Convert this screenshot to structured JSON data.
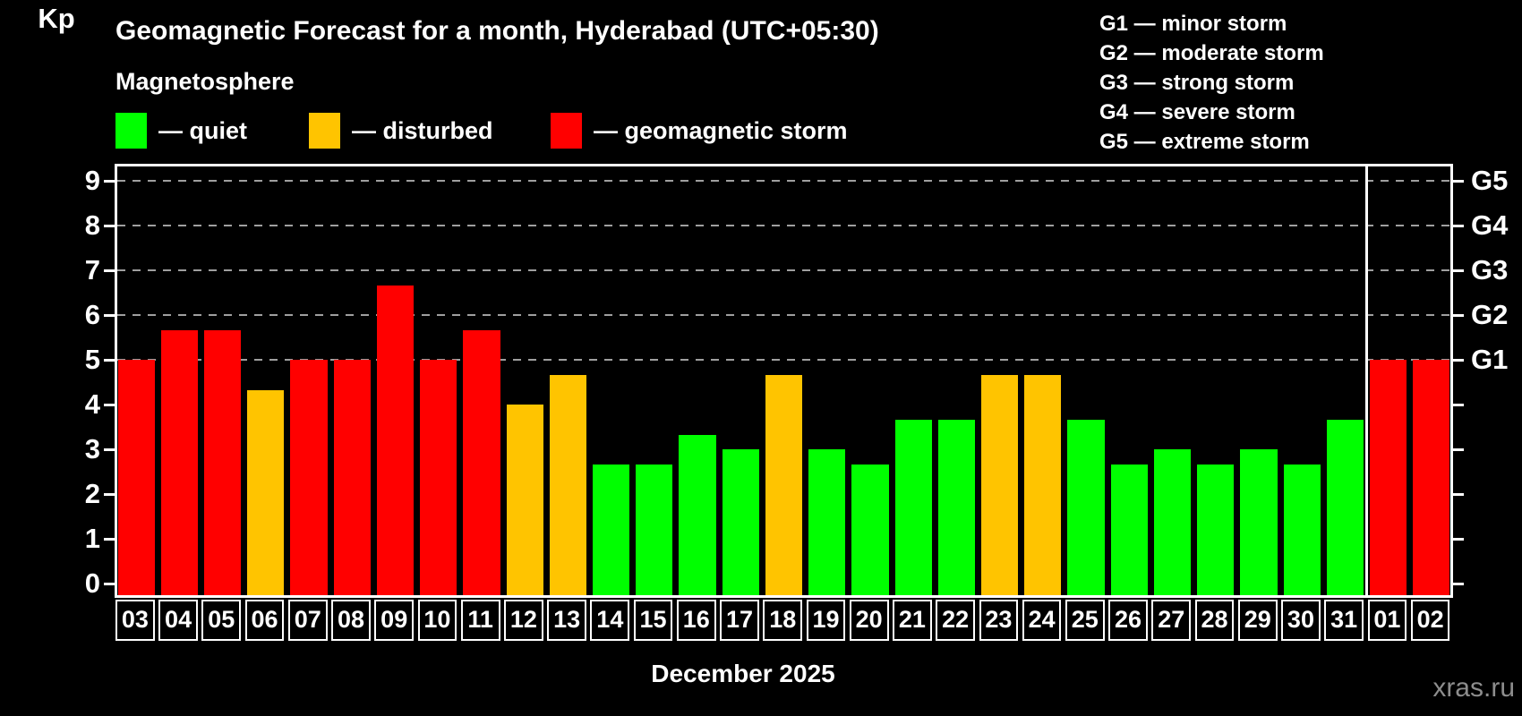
{
  "subtitle": "Magnetosphere",
  "legend": {
    "items": [
      {
        "status": "quiet",
        "label": "— quiet",
        "color": "#00ff00"
      },
      {
        "status": "disturbed",
        "label": "— disturbed",
        "color": "#ffc400"
      },
      {
        "status": "storm",
        "label": "— geomagnetic storm",
        "color": "#ff0000"
      }
    ]
  },
  "storm_legend": [
    "G1 — minor storm",
    "G2 — moderate storm",
    "G3 — strong storm",
    "G4 — severe storm",
    "G5 — extreme storm"
  ],
  "chart_data": {
    "type": "bar",
    "title": "Geomagnetic Forecast for a month, Hyderabad (UTC+05:30)",
    "xlabel": "December 2025",
    "ylabel": "Kp",
    "ylim": [
      0,
      9
    ],
    "yticks": [
      0,
      1,
      2,
      3,
      4,
      5,
      6,
      7,
      8,
      9
    ],
    "gridlines_at": [
      5,
      6,
      7,
      8,
      9
    ],
    "grid_style": "dashed gray horizontal",
    "right_axis": [
      {
        "value": 5,
        "label": "G1"
      },
      {
        "value": 6,
        "label": "G2"
      },
      {
        "value": 7,
        "label": "G3"
      },
      {
        "value": 8,
        "label": "G4"
      },
      {
        "value": 9,
        "label": "G5"
      }
    ],
    "categories": [
      "03",
      "04",
      "05",
      "06",
      "07",
      "08",
      "09",
      "10",
      "11",
      "12",
      "13",
      "14",
      "15",
      "16",
      "17",
      "18",
      "19",
      "20",
      "21",
      "22",
      "23",
      "24",
      "25",
      "26",
      "27",
      "28",
      "29",
      "30",
      "31",
      "01",
      "02"
    ],
    "values": [
      5,
      5.67,
      5.67,
      4.33,
      5,
      5,
      6.67,
      5,
      5.67,
      4,
      4.67,
      2.67,
      2.67,
      3.33,
      3,
      4.67,
      3,
      2.67,
      3.67,
      3.67,
      4.67,
      4.67,
      3.67,
      2.67,
      3,
      2.67,
      3,
      2.67,
      3.67,
      5,
      5
    ],
    "statuses": [
      "storm",
      "storm",
      "storm",
      "disturbed",
      "storm",
      "storm",
      "storm",
      "storm",
      "storm",
      "disturbed",
      "disturbed",
      "quiet",
      "quiet",
      "quiet",
      "quiet",
      "disturbed",
      "quiet",
      "quiet",
      "quiet",
      "quiet",
      "disturbed",
      "disturbed",
      "quiet",
      "quiet",
      "quiet",
      "quiet",
      "quiet",
      "quiet",
      "quiet",
      "storm",
      "storm"
    ],
    "status_colors": {
      "quiet": "#00ff00",
      "disturbed": "#ffc400",
      "storm": "#ff0000"
    },
    "month_divider_after_category": "31",
    "legend_position": "top-left"
  },
  "watermark": "xras.ru"
}
